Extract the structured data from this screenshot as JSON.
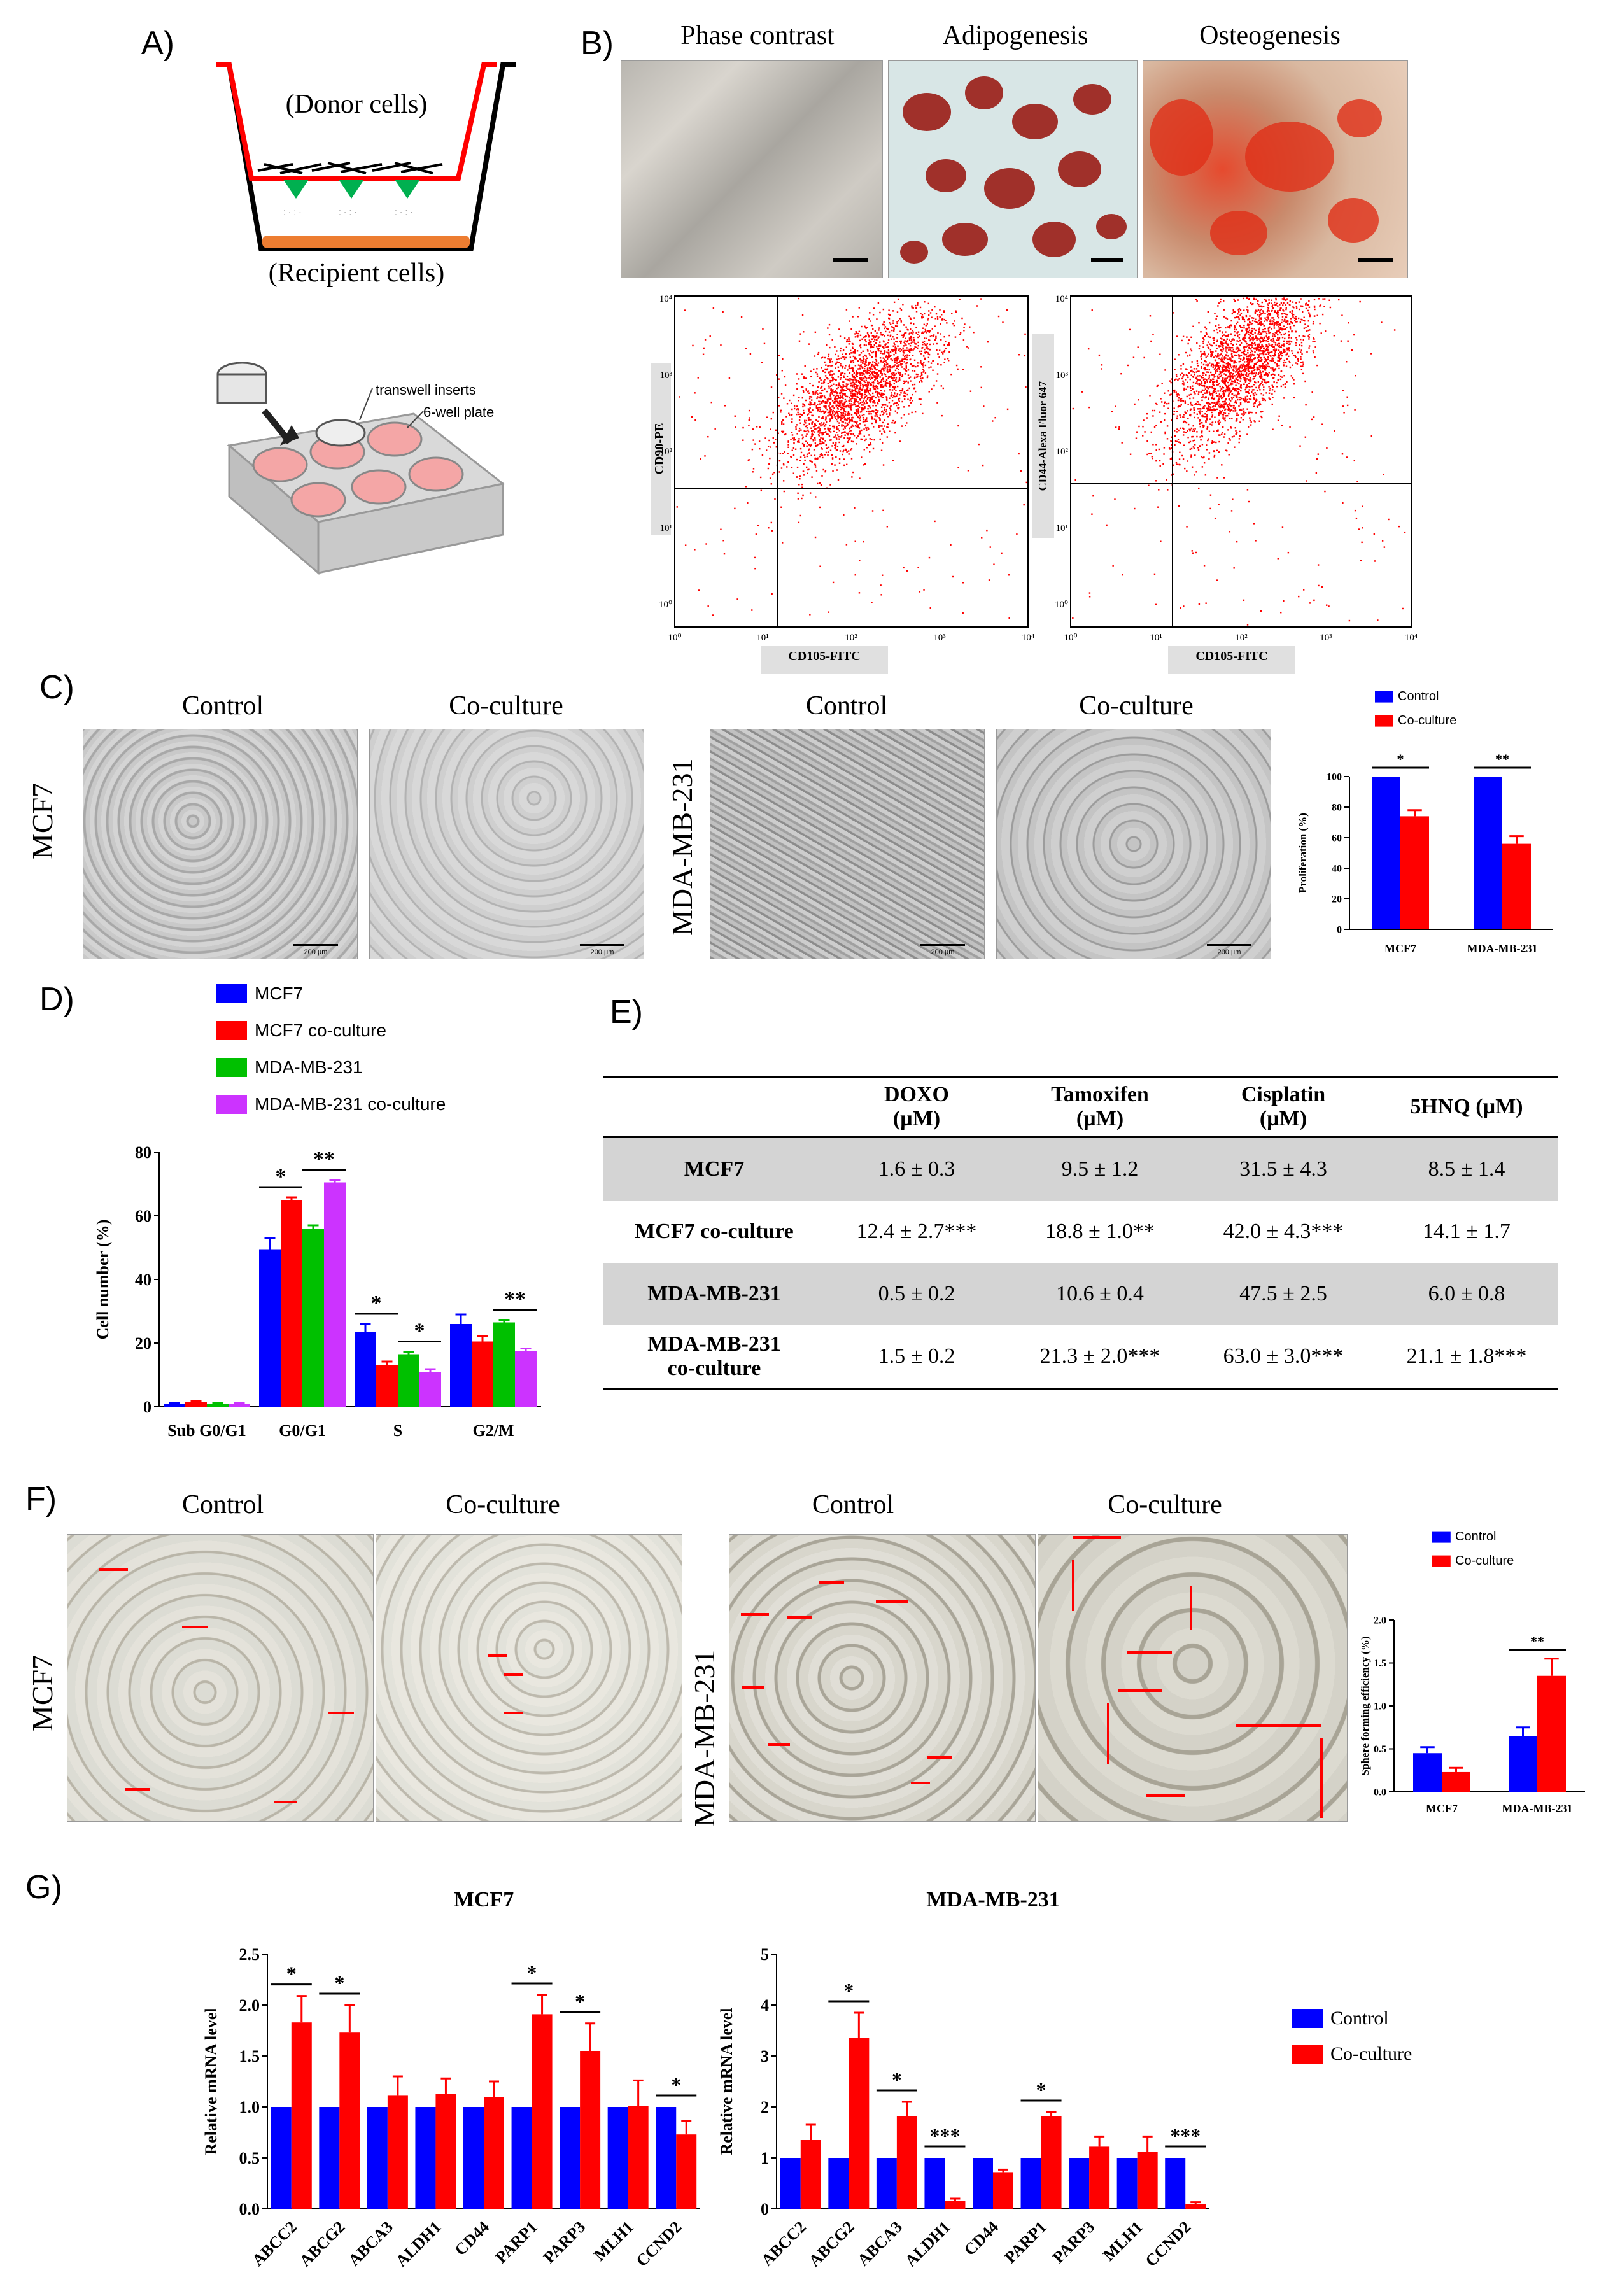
{
  "panels": {
    "A": "A)",
    "B": "B)",
    "C": "C)",
    "D": "D)",
    "E": "E)",
    "F": "F)",
    "G": "G)"
  },
  "panel_a": {
    "donor_label": "(Donor cells)",
    "recipient_label": "(Recipient cells)",
    "insert_label": "transwell inserts",
    "plate_label": "6-well plate"
  },
  "panel_b": {
    "photo_titles": [
      "Phase contrast",
      "Adipogenesis",
      "Osteogenesis"
    ],
    "flow_left": {
      "ylabel": "CD90-PE",
      "xlabel": "CD105-FITC"
    },
    "flow_right": {
      "ylabel": "CD44-Alexa Fluor 647",
      "xlabel": "CD105-FITC"
    },
    "y_ticks": [
      "10⁴",
      "10³",
      "10²",
      "10¹",
      "10⁰"
    ],
    "x_ticks": [
      "10⁰",
      "10¹",
      "10²",
      "10³",
      "10⁴"
    ]
  },
  "panel_c": {
    "row_label_left": "MCF7",
    "row_label_right": "MDA-MB-231",
    "titles": [
      "Control",
      "Co-culture",
      "Control",
      "Co-culture"
    ],
    "scalebar": "200 µm"
  },
  "panel_e": {
    "headers": [
      {
        "l1": "DOXO",
        "l2": "(µM)"
      },
      {
        "l1": "Tamoxifen",
        "l2": "(µM)"
      },
      {
        "l1": "Cisplatin",
        "l2": "(µM)"
      },
      {
        "l1": "5HNQ (µM)",
        "l2": ""
      }
    ],
    "rows": [
      {
        "label": "MCF7",
        "label2": "",
        "cells": [
          "1.6 ± 0.3",
          "9.5 ± 1.2",
          "31.5 ± 4.3",
          "8.5 ± 1.4"
        ]
      },
      {
        "label": "MCF7 co-culture",
        "label2": "",
        "cells": [
          "12.4 ± 2.7***",
          "18.8 ± 1.0**",
          "42.0 ± 4.3***",
          "14.1 ± 1.7"
        ]
      },
      {
        "label": "MDA-MB-231",
        "label2": "",
        "cells": [
          "0.5 ± 0.2",
          "10.6 ± 0.4",
          "47.5 ± 2.5",
          "6.0 ± 0.8"
        ]
      },
      {
        "label": "MDA-MB-231",
        "label2": "co-culture",
        "cells": [
          "1.5 ± 0.2",
          "21.3 ± 2.0***",
          "63.0 ± 3.0***",
          "21.1 ± 1.8***"
        ]
      }
    ]
  },
  "panel_f": {
    "row_label_left": "MCF7",
    "row_label_right": "MDA-MB-231",
    "titles": [
      "Control",
      "Co-culture",
      "Control",
      "Co-culture"
    ]
  },
  "colors": {
    "blue": "#0000ff",
    "red": "#ff0000",
    "green": "#00c000",
    "magenta": "#cc33ff"
  },
  "chart_data": [
    {
      "id": "C-proliferation",
      "type": "bar",
      "title": "",
      "ylabel": "Proliferation (%)",
      "xlabel": "",
      "ylim": [
        0,
        100
      ],
      "yticks": [
        0,
        20,
        40,
        60,
        80,
        100
      ],
      "categories": [
        "MCF7",
        "MDA-MB-231"
      ],
      "legend": [
        "Control",
        "Co-culture"
      ],
      "series": [
        {
          "name": "Control",
          "values": [
            100,
            100
          ],
          "errors": [
            0,
            0
          ]
        },
        {
          "name": "Co-culture",
          "values": [
            74,
            56
          ],
          "errors": [
            4,
            5
          ]
        }
      ],
      "significance": [
        {
          "category": 0,
          "label": "*"
        },
        {
          "category": 1,
          "label": "**"
        }
      ]
    },
    {
      "id": "D-cell-cycle",
      "type": "bar",
      "title": "",
      "ylabel": "Cell number (%)",
      "xlabel": "",
      "ylim": [
        0,
        80
      ],
      "yticks": [
        0,
        20,
        40,
        60,
        80
      ],
      "categories": [
        "Sub G0/G1",
        "G0/G1",
        "S",
        "G2/M"
      ],
      "legend": [
        "MCF7",
        "MCF7 co-culture",
        "MDA-MB-231",
        "MDA-MB-231 co-culture"
      ],
      "series": [
        {
          "name": "MCF7",
          "values": [
            1,
            49.5,
            23.5,
            26
          ],
          "errors": [
            0.3,
            3.5,
            2.5,
            3
          ]
        },
        {
          "name": "MCF7 co-culture",
          "values": [
            1.5,
            65,
            13,
            20.5
          ],
          "errors": [
            0.3,
            0.8,
            1.2,
            1.8
          ]
        },
        {
          "name": "MDA-MB-231",
          "values": [
            1,
            56,
            16.5,
            26.5
          ],
          "errors": [
            0.3,
            1,
            0.8,
            0.8
          ]
        },
        {
          "name": "MDA-MB-231 co-culture",
          "values": [
            1,
            70.5,
            11,
            17.5
          ],
          "errors": [
            0.3,
            0.8,
            0.8,
            0.8
          ]
        }
      ],
      "significance": [
        {
          "category": 1,
          "pair": [
            0,
            1
          ],
          "label": "*"
        },
        {
          "category": 1,
          "pair": [
            2,
            3
          ],
          "label": "**"
        },
        {
          "category": 2,
          "pair": [
            0,
            1
          ],
          "label": "*"
        },
        {
          "category": 2,
          "pair": [
            2,
            3
          ],
          "label": "*"
        },
        {
          "category": 3,
          "pair": [
            2,
            3
          ],
          "label": "**"
        }
      ]
    },
    {
      "id": "F-sphere",
      "type": "bar",
      "title": "",
      "ylabel": "Sphere forming efficiency (%)",
      "xlabel": "",
      "ylim": [
        0,
        2.0
      ],
      "yticks": [
        0.0,
        0.5,
        1.0,
        1.5,
        2.0
      ],
      "categories": [
        "MCF7",
        "MDA-MB-231"
      ],
      "legend": [
        "Control",
        "Co-culture"
      ],
      "series": [
        {
          "name": "Control",
          "values": [
            0.45,
            0.65
          ],
          "errors": [
            0.07,
            0.1
          ]
        },
        {
          "name": "Co-culture",
          "values": [
            0.23,
            1.35
          ],
          "errors": [
            0.05,
            0.2
          ]
        }
      ],
      "significance": [
        {
          "category": 1,
          "label": "**"
        }
      ]
    },
    {
      "id": "G-MCF7",
      "type": "bar",
      "title": "MCF7",
      "ylabel": "Relative mRNA level",
      "xlabel": "",
      "ylim": [
        0,
        2.5
      ],
      "yticks": [
        0.0,
        0.5,
        1.0,
        1.5,
        2.0,
        2.5
      ],
      "categories": [
        "ABCC2",
        "ABCG2",
        "ABCA3",
        "ALDH1",
        "CD44",
        "PARP1",
        "PARP3",
        "MLH1",
        "CCND2"
      ],
      "legend": [
        "Control",
        "Co-culture"
      ],
      "series": [
        {
          "name": "Control",
          "values": [
            1,
            1,
            1,
            1,
            1,
            1,
            1,
            1,
            1
          ],
          "errors": [
            0,
            0,
            0,
            0,
            0,
            0,
            0,
            0,
            0
          ]
        },
        {
          "name": "Co-culture",
          "values": [
            1.83,
            1.73,
            1.11,
            1.13,
            1.1,
            1.91,
            1.55,
            1.01,
            0.73
          ],
          "errors": [
            0.26,
            0.27,
            0.19,
            0.15,
            0.15,
            0.19,
            0.27,
            0.25,
            0.13
          ]
        }
      ],
      "significance": [
        {
          "category": 0,
          "label": "*"
        },
        {
          "category": 1,
          "label": "*"
        },
        {
          "category": 5,
          "label": "*"
        },
        {
          "category": 6,
          "label": "*"
        },
        {
          "category": 8,
          "label": "*"
        }
      ]
    },
    {
      "id": "G-MDA-MB-231",
      "type": "bar",
      "title": "MDA-MB-231",
      "ylabel": "Relative mRNA level",
      "xlabel": "",
      "ylim": [
        0,
        5
      ],
      "yticks": [
        0,
        1,
        2,
        3,
        4,
        5
      ],
      "categories": [
        "ABCC2",
        "ABCG2",
        "ABCA3",
        "ALDH1",
        "CD44",
        "PARP1",
        "PARP3",
        "MLH1",
        "CCND2"
      ],
      "legend": [
        "Control",
        "Co-culture"
      ],
      "series": [
        {
          "name": "Control",
          "values": [
            1,
            1,
            1,
            1,
            1,
            1,
            1,
            1,
            1
          ],
          "errors": [
            0,
            0,
            0,
            0,
            0,
            0,
            0,
            0,
            0
          ]
        },
        {
          "name": "Co-culture",
          "values": [
            1.35,
            3.35,
            1.82,
            0.15,
            0.72,
            1.82,
            1.22,
            1.12,
            0.1
          ],
          "errors": [
            0.3,
            0.5,
            0.28,
            0.05,
            0.05,
            0.08,
            0.2,
            0.3,
            0.03
          ]
        }
      ],
      "significance": [
        {
          "category": 1,
          "label": "*"
        },
        {
          "category": 2,
          "label": "*"
        },
        {
          "category": 3,
          "label": "***"
        },
        {
          "category": 5,
          "label": "*"
        },
        {
          "category": 8,
          "label": "***"
        }
      ]
    }
  ]
}
